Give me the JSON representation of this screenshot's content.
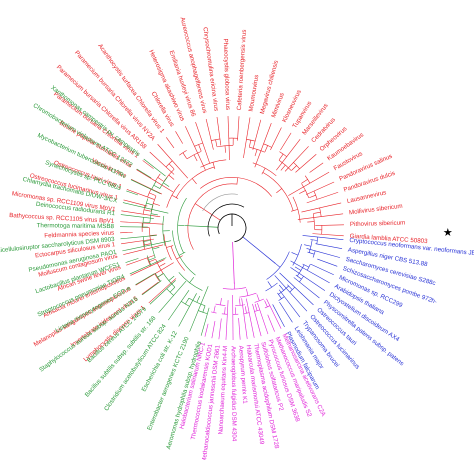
{
  "colors": {
    "red": "#e8242a",
    "blue": "#2832d6",
    "magenta": "#e020d8",
    "green": "#2b9a3a",
    "black": "#000000",
    "gray": "#9a9a9a"
  },
  "marker": "star",
  "clades": [
    {
      "name": "red",
      "labels": [
        "Giardia lamblia ATCC 50803",
        "Pithovirus sibericum",
        "Mollivirus sibericum",
        "Lausannevirus",
        "Pandoravirus dulcis",
        "Pandoravirus salinus",
        "Faustovirus",
        "Kaumoebavirus",
        "Orpheovirus",
        "Cedratvirus",
        "Marseillevirus",
        "Tupanvirus",
        "Klosneuvirus",
        "Mimivirus",
        "Megavirus chiliensis",
        "Moumouvirus",
        "Cafeteria roenbergensis virus",
        "Phaeocystis globosa virus",
        "Chrysochromulina ericina virus",
        "Aureococcus anophagefferens virus",
        "Emiliania huxleyi virus 86",
        "Heterosigma akashiwo virus",
        "Chlorella virus",
        "Acanthocystis turfacea Chlorella virus 1",
        "Paramecium bursaria Chlorella virus NY2A",
        "Paramecium bursaria Chlorella virus AR158",
        "Paramecium bursaria Chlorella virus 1",
        "Bovine papular stomatitis virus",
        "Vaccinia virus",
        "Ostreococcus tauri virus 1",
        "Ostreococcus lucimarinus virus 1",
        "Micromonas sp. RCC1109 virus MpV1",
        "Bathycoccus sp. RCC1105 virus BpV1",
        "Feldmannia species virus",
        "Ectocarpus siliculosus virus 1",
        "Molluscum contagiosum virus",
        "African swine fever virus",
        "Amsacta moorei entomopoxvirus",
        "Melanoplus sanguinipes entomopoxvirus",
        "Invertebrate iridescent virus 6",
        "Lymphocystis disease virus 1"
      ]
    },
    {
      "name": "blue",
      "labels": [
        "Cryptococcus neoformans var. neoformans JEC21",
        "Aspergillus niger CBS 513.88",
        "Saccharomyces cerevisiae S288c",
        "Schizosaccharomyces pombe 972h-",
        "Micromonas sp. RCC299",
        "Arabidopsis thaliana",
        "Dictyostelium discoideum AX4",
        "Physcomitrella patens subsp. patens",
        "Ostreococcus tauri",
        "Ostreococcus lucimarinus",
        "Trypanosoma brucei",
        "Leishmania major",
        "Plasmodium falciparum"
      ]
    },
    {
      "name": "magenta",
      "labels": [
        "Methanosarcina acetivorans C2A",
        "Methanococcus maripaludis S2",
        "Pyrococcus furiosus DSM 3638",
        "Sulfolobus solfataricus P2",
        "Thermoplasma acidophilum DSM 1728",
        "Haloarcula marismortui ATCC 43049",
        "Aeropyrum pernix K1",
        "Archaeoglobus fulgidus DSM 4304",
        "Nanoarchaeum equitans Kin4-M",
        "Methanocaldococcus jannaschii DSM 2661",
        "Thermococcus kodakarensis KOD1",
        "Halobacterium salinarum NRC-1"
      ]
    },
    {
      "name": "green",
      "labels": [
        "Aeromonas hydrophila subsp. hydrophila",
        "Enterobacter aerogenes KCTC 2190",
        "Escherichia coli str. K-12",
        "Clostridium acetobutylicum ATCC 824",
        "Bacillus subtilis subsp. subtilis str. 168",
        "Bacillus cereus ATCC 14579",
        "Staphylococcus aureus subsp. aureus N315",
        "Listeria monocytogenes EGD-e",
        "Streptococcus pneumoniae TIGR4",
        "Lactobacillus plantarum WCFS1",
        "Pseudomonas aeruginosa PAO1",
        "Caldicellulosiruptor saccharolyticus DSM 8903",
        "Thermotoga maritima MSB8",
        "Deinococcus radiodurans R1",
        "Chlamydia trachomatis D/UW-3/CX",
        "Synechocystis sp. PCC 6803",
        "Mycobacterium tuberculosis H37Rv",
        "Chromobacterium violaceum ATCC 12472",
        "Xanthomonas campestris pv. campestris"
      ]
    }
  ]
}
